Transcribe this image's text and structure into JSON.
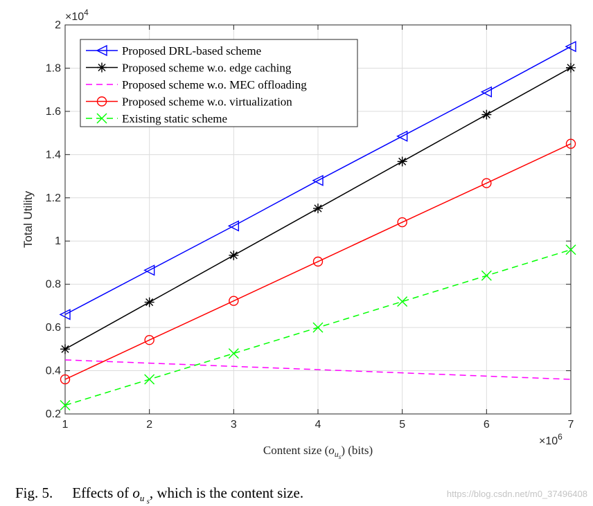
{
  "chart_data": {
    "type": "line",
    "xlabel": "Content size",
    "xlabel_symbol": "o",
    "xlabel_subscript": "u",
    "xlabel_subsubscript": "s",
    "xlabel_unit": "(bits)",
    "ylabel": "Total Utility",
    "x_exponent": "6",
    "y_exponent": "4",
    "exp_base": "×10",
    "xlim": [
      1,
      7
    ],
    "ylim": [
      0.2,
      2
    ],
    "xticks": [
      1,
      2,
      3,
      4,
      5,
      6,
      7
    ],
    "yticks": [
      0.2,
      0.4,
      0.6,
      0.8,
      1,
      1.2,
      1.4,
      1.6,
      1.8,
      2
    ],
    "grid": true,
    "legend_position": "top-left",
    "x": [
      1,
      2,
      3,
      4,
      5,
      6,
      7
    ],
    "series": [
      {
        "name": "Proposed DRL-based scheme",
        "color": "#0000ff",
        "dash": "solid",
        "marker": "triangle-left",
        "values": [
          0.66,
          0.865,
          1.07,
          1.28,
          1.485,
          1.69,
          1.9
        ]
      },
      {
        "name": "Proposed scheme w.o. edge caching",
        "color": "#000000",
        "dash": "solid",
        "marker": "asterisk",
        "values": [
          0.5,
          0.717,
          0.934,
          1.151,
          1.368,
          1.585,
          1.802
        ]
      },
      {
        "name": "Proposed scheme w.o. MEC offloading",
        "color": "#ff00ff",
        "dash": "dashed",
        "marker": "none",
        "values": [
          0.45,
          0.435,
          0.42,
          0.405,
          0.39,
          0.375,
          0.36
        ]
      },
      {
        "name": "Proposed scheme w.o. virtualization",
        "color": "#ff0000",
        "dash": "solid",
        "marker": "circle",
        "values": [
          0.36,
          0.542,
          0.723,
          0.905,
          1.087,
          1.268,
          1.45
        ]
      },
      {
        "name": "Existing static scheme",
        "color": "#00ff00",
        "dash": "dashed",
        "marker": "x",
        "values": [
          0.24,
          0.36,
          0.48,
          0.6,
          0.72,
          0.84,
          0.96
        ]
      }
    ]
  },
  "caption": {
    "fig_label": "Fig. 5.",
    "text_before": "Effects of",
    "symbol": "o",
    "sub": "u",
    "subsub": "s",
    "text_after": ", which is the content size."
  },
  "watermark": "https://blog.csdn.net/m0_37496408"
}
